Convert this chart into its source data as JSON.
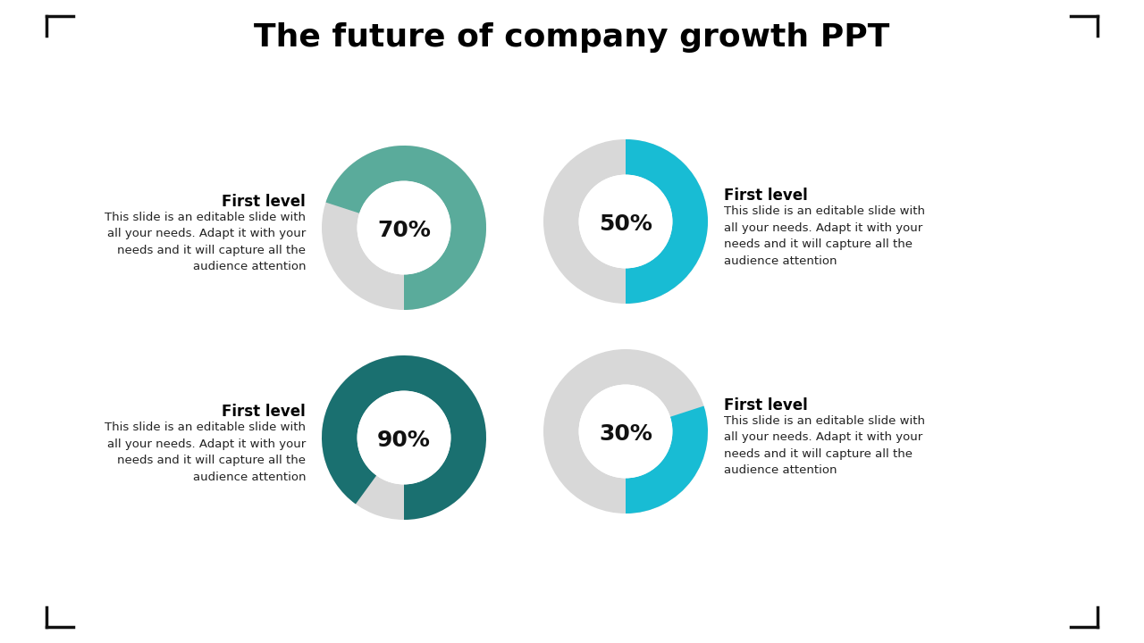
{
  "title": "The future of company growth PPT",
  "title_fontsize": 26,
  "background_color": "#ffffff",
  "charts": [
    {
      "percentage": 70,
      "color": "#5aab9b",
      "label": "70%",
      "row": 0,
      "col": 0
    },
    {
      "percentage": 50,
      "color": "#18bcd4",
      "label": "50%",
      "row": 0,
      "col": 1
    },
    {
      "percentage": 90,
      "color": "#1a7070",
      "label": "90%",
      "row": 1,
      "col": 0
    },
    {
      "percentage": 30,
      "color": "#18bcd4",
      "label": "30%",
      "row": 1,
      "col": 1
    }
  ],
  "text_title": "First level",
  "text_body": "This slide is an editable slide with\nall your needs. Adapt it with your\nneeds and it will capture all the\naudience attention",
  "donut_bg_color": "#d8d8d8",
  "donut_center_color": "#ffffff",
  "pct_fontsize": 18,
  "text_title_fontsize": 12,
  "text_body_fontsize": 9.5
}
